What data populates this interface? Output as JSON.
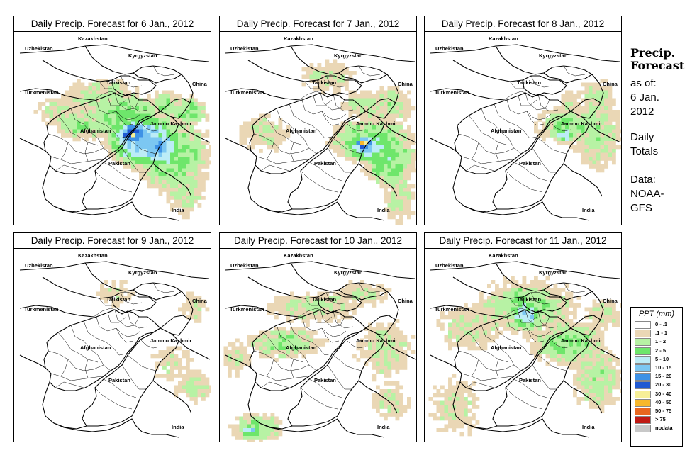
{
  "panels": [
    {
      "title": "Daily Precip. Forecast for  6 Jan., 2012"
    },
    {
      "title": "Daily Precip. Forecast for  7 Jan., 2012"
    },
    {
      "title": "Daily Precip. Forecast for  8 Jan., 2012"
    },
    {
      "title": "Daily Precip. Forecast for  9 Jan., 2012"
    },
    {
      "title": "Daily Precip. Forecast for  10 Jan., 2012"
    },
    {
      "title": "Daily Precip. Forecast for  11 Jan., 2012"
    }
  ],
  "map_labels": {
    "uzbekistan": "Uzbekistan",
    "kazakhstan": "Kazakhstan",
    "kyrgyzstan": "Kyrgyzstan",
    "tajikistan": "Tajikistan",
    "turkmenistan": "Turkmenistan",
    "china": "China",
    "afghanistan": "Afghanistan",
    "jammu_kashmir": "Jammu Kashmir",
    "pakistan": "Pakistan",
    "india": "India"
  },
  "side": {
    "title_line1": "Precip.",
    "title_line2": "Forecast",
    "asof": "as of:",
    "date1": "6 Jan.",
    "date2": "2012",
    "totals1": "Daily",
    "totals2": "Totals",
    "data1": "Data:",
    "data2": "NOAA-",
    "data3": "GFS"
  },
  "legend": {
    "title": "PPT (mm)",
    "items": [
      {
        "label": "0 - .1",
        "color": "#ffffff"
      },
      {
        "label": ".1 - 1",
        "color": "#ead7b5"
      },
      {
        "label": "1 - 2",
        "color": "#b7f2a4"
      },
      {
        "label": "2 - 5",
        "color": "#6ee66b"
      },
      {
        "label": "5 - 10",
        "color": "#bcecf7"
      },
      {
        "label": "10 - 15",
        "color": "#7cc7f2"
      },
      {
        "label": "15 - 20",
        "color": "#3e92e6"
      },
      {
        "label": "20 - 30",
        "color": "#2059d2"
      },
      {
        "label": "30 - 40",
        "color": "#f7ef97"
      },
      {
        "label": "40 - 50",
        "color": "#f7b72c"
      },
      {
        "label": "50 - 75",
        "color": "#e8671e"
      },
      {
        "label": "> 75",
        "color": "#c01a14"
      },
      {
        "label": "nodata",
        "color": "#c8c8c8"
      }
    ]
  }
}
